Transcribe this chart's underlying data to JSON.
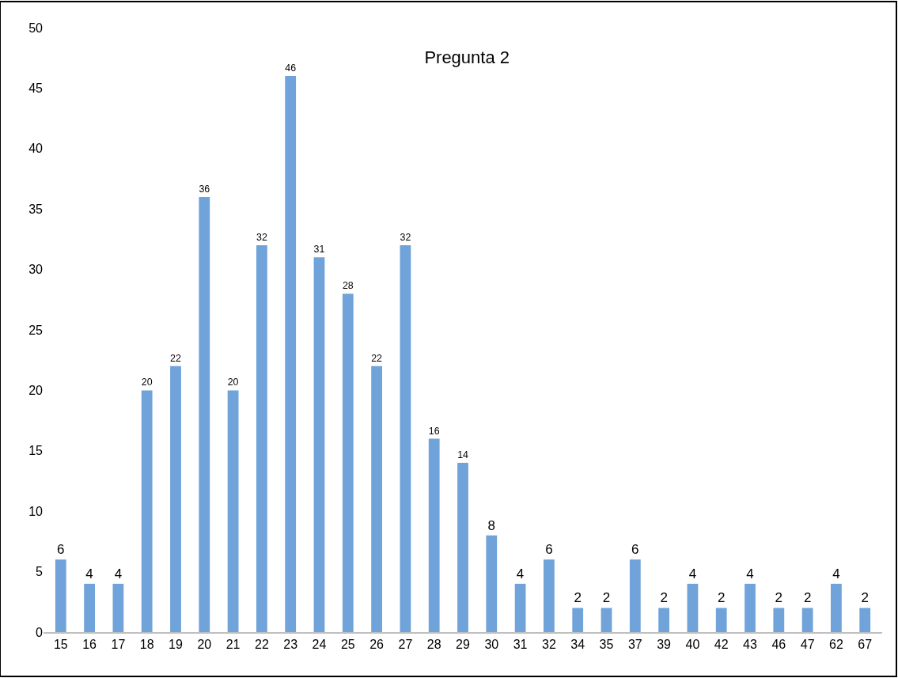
{
  "chart_data": {
    "type": "bar",
    "title": "Pregunta 2",
    "categories": [
      "15",
      "16",
      "17",
      "18",
      "19",
      "20",
      "21",
      "22",
      "23",
      "24",
      "25",
      "26",
      "27",
      "28",
      "29",
      "30",
      "31",
      "32",
      "34",
      "35",
      "37",
      "39",
      "40",
      "42",
      "43",
      "46",
      "47",
      "62",
      "67"
    ],
    "values": [
      6,
      4,
      4,
      20,
      22,
      36,
      20,
      32,
      46,
      31,
      28,
      22,
      32,
      16,
      14,
      8,
      4,
      6,
      2,
      2,
      6,
      2,
      4,
      2,
      4,
      2,
      2,
      4,
      2
    ],
    "color": "#6fa3d9",
    "ylim": [
      0,
      50
    ],
    "yticks": [
      0,
      5,
      10,
      15,
      20,
      25,
      30,
      35,
      40,
      45,
      50
    ],
    "grid": false,
    "data_labels": true
  }
}
